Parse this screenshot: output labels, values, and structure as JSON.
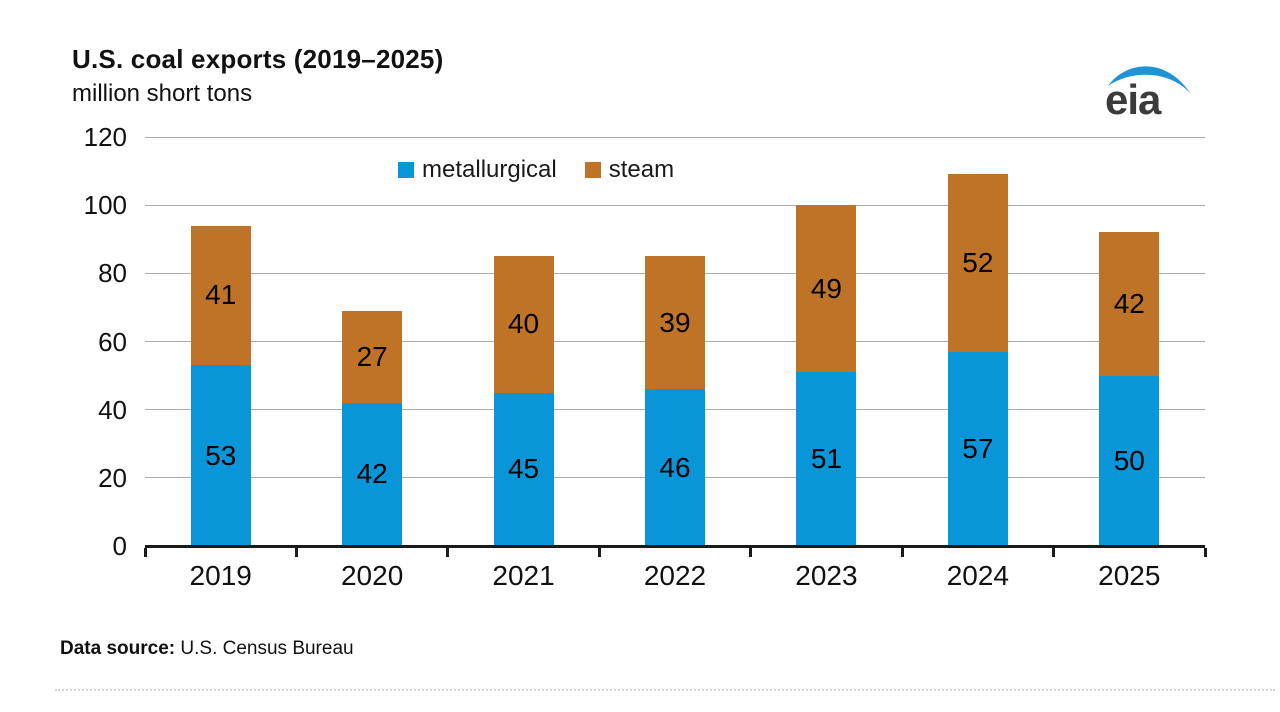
{
  "header": {
    "title": "U.S. coal exports (2019–2025)",
    "subtitle": "million short tons"
  },
  "logo": {
    "text": "eia",
    "swoosh_color": "#1E93D6",
    "text_color": "#3b3b3b"
  },
  "chart_data": {
    "type": "bar",
    "stacked": true,
    "title": "U.S. coal exports (2019–2025)",
    "ylabel": "million short tons",
    "xlabel": "",
    "categories": [
      "2019",
      "2020",
      "2021",
      "2022",
      "2023",
      "2024",
      "2025"
    ],
    "series": [
      {
        "name": "metallurgical",
        "color": "#0996D9",
        "values": [
          53,
          42,
          45,
          46,
          51,
          57,
          50
        ]
      },
      {
        "name": "steam",
        "color": "#BF7327",
        "values": [
          41,
          27,
          40,
          39,
          49,
          52,
          42
        ]
      }
    ],
    "totals": [
      94,
      69,
      85,
      86,
      100,
      109,
      92
    ],
    "ylim": [
      0,
      120
    ],
    "ytick_step": 20,
    "grid": true,
    "legend_position": "top-center",
    "data_labels": true
  },
  "footer": {
    "label": "Data source:",
    "source": "U.S. Census Bureau"
  }
}
